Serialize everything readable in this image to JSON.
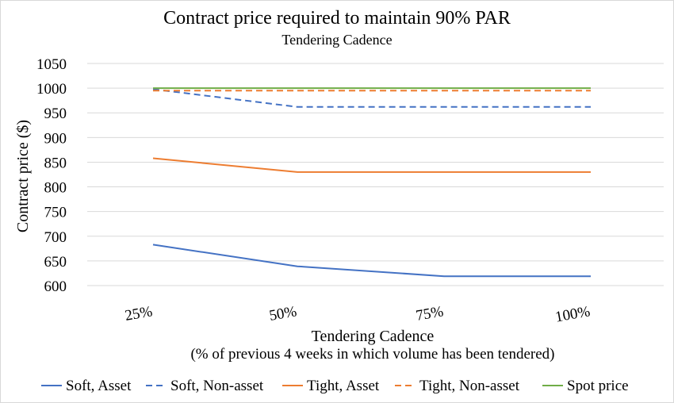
{
  "chart_data": {
    "type": "line",
    "title": "Contract price required to maintain 90% PAR",
    "subtitle": "Tendering Cadence",
    "xlabel": "Tendering Cadence",
    "xlabel_note": "(% of previous 4 weeks in which volume has been tendered)",
    "ylabel": "Contract price ($)",
    "categories": [
      "25%",
      "50%",
      "75%",
      "100%"
    ],
    "ylim": [
      600,
      1050
    ],
    "yticks": [
      "1050",
      "1000",
      "950",
      "900",
      "850",
      "800",
      "750",
      "700",
      "650",
      "600"
    ],
    "grid": true,
    "legend_position": "bottom",
    "series": [
      {
        "name": "Soft, Asset",
        "color": "#4472C4",
        "dash": "solid",
        "values": [
          683,
          639,
          619,
          619
        ]
      },
      {
        "name": "Soft, Non-asset",
        "color": "#4472C4",
        "dash": "dashed",
        "values": [
          998,
          962,
          962,
          962
        ]
      },
      {
        "name": "Tight, Asset",
        "color": "#ED7D31",
        "dash": "solid",
        "values": [
          858,
          830,
          830,
          830
        ]
      },
      {
        "name": "Tight, Non-asset",
        "color": "#ED7D31",
        "dash": "dashed",
        "values": [
          995,
          995,
          995,
          995
        ]
      },
      {
        "name": "Spot price",
        "color": "#70AD47",
        "dash": "solid",
        "values": [
          1000,
          1000,
          1000,
          1000
        ]
      }
    ]
  }
}
